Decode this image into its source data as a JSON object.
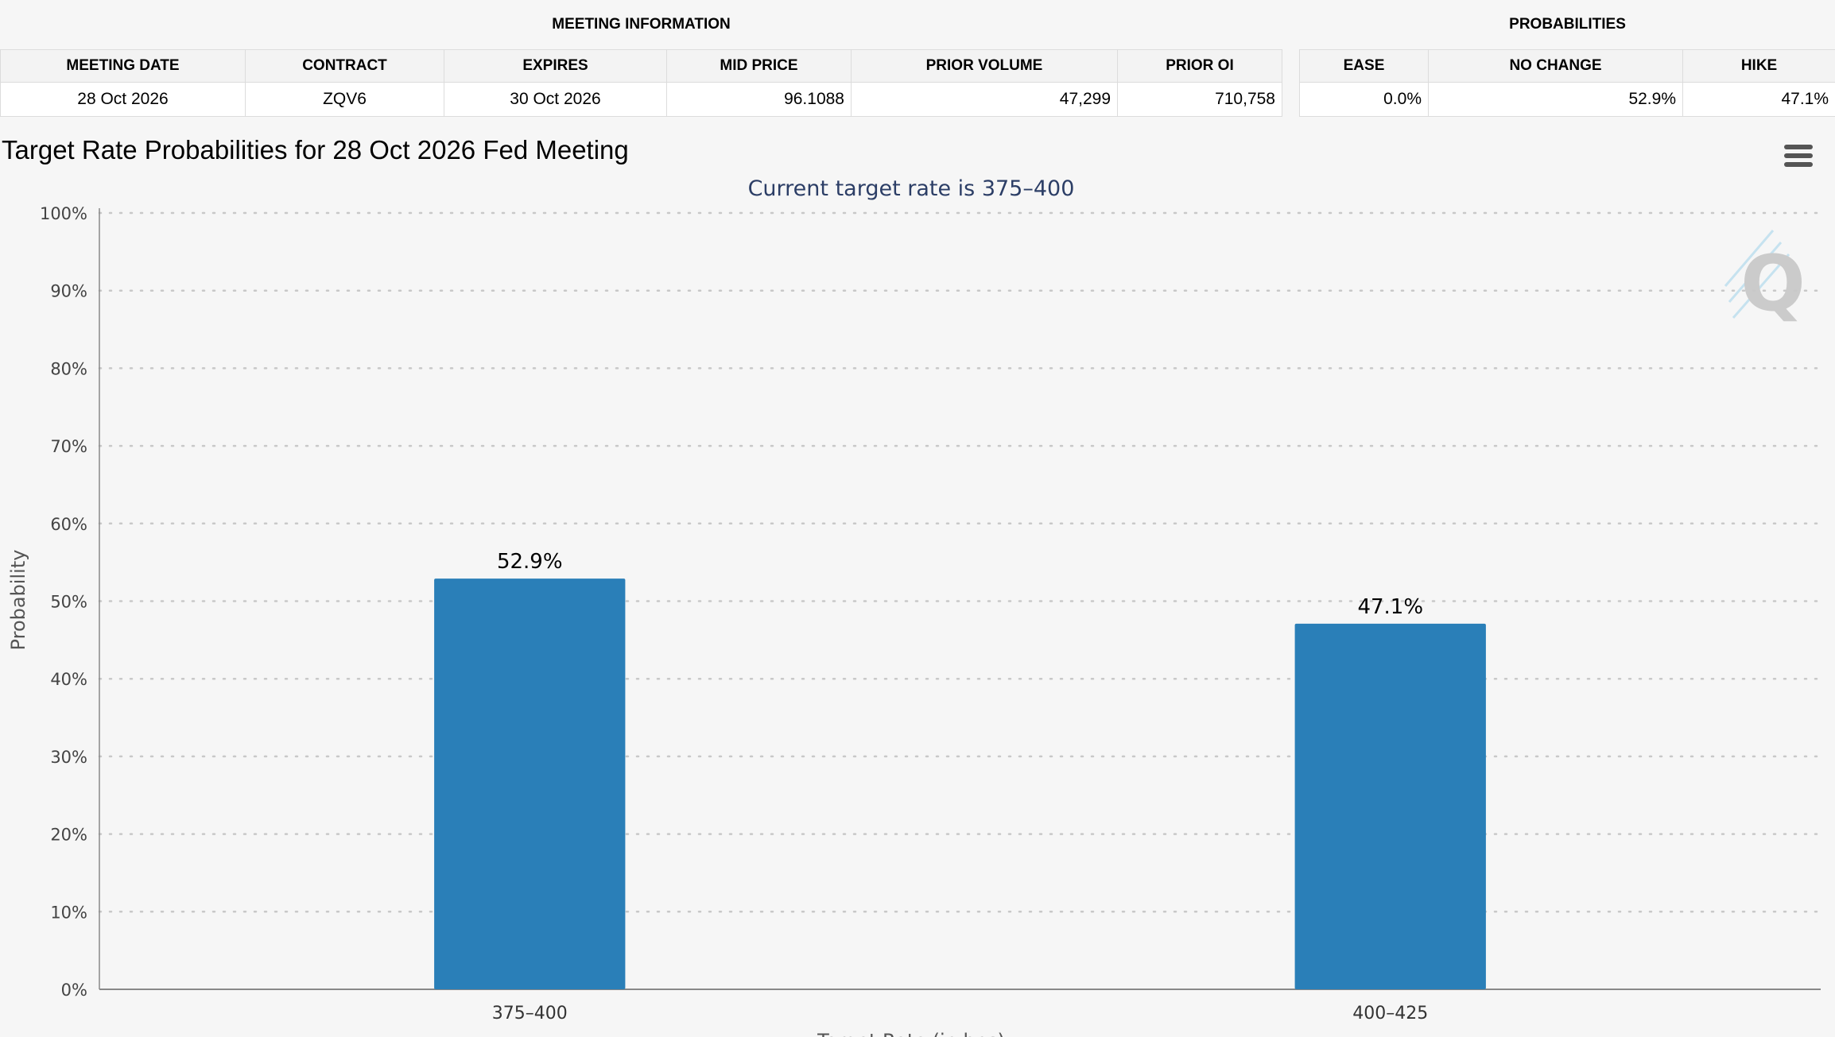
{
  "meeting_info": {
    "group_title": "MEETING INFORMATION",
    "headers": [
      "MEETING DATE",
      "CONTRACT",
      "EXPIRES",
      "MID PRICE",
      "PRIOR VOLUME",
      "PRIOR OI"
    ],
    "row": [
      "28 Oct 2026",
      "ZQV6",
      "30 Oct 2026",
      "96.1088",
      "47,299",
      "710,758"
    ]
  },
  "probabilities": {
    "group_title": "PROBABILITIES",
    "headers": [
      "EASE",
      "NO CHANGE",
      "HIKE"
    ],
    "row": [
      "0.0%",
      "52.9%",
      "47.1%"
    ]
  },
  "chart_title": "Target Rate Probabilities for 28 Oct 2026 Fed Meeting",
  "chart_data": {
    "type": "bar",
    "subtitle": "Current target rate is 375–400",
    "categories": [
      "375–400",
      "400–425"
    ],
    "values": [
      52.9,
      47.1
    ],
    "data_labels": [
      "52.9%",
      "47.1%"
    ],
    "ylabel": "Probability",
    "xlabel": "Target Rate (in bps)",
    "ylim": [
      0,
      100
    ],
    "yticks": [
      "0%",
      "10%",
      "20%",
      "30%",
      "40%",
      "50%",
      "60%",
      "70%",
      "80%",
      "90%",
      "100%"
    ],
    "grid": true,
    "bar_color": "#2a7fb8"
  },
  "icons": {
    "menu": "hamburger-menu-icon",
    "watermark": "q-logo-watermark"
  }
}
